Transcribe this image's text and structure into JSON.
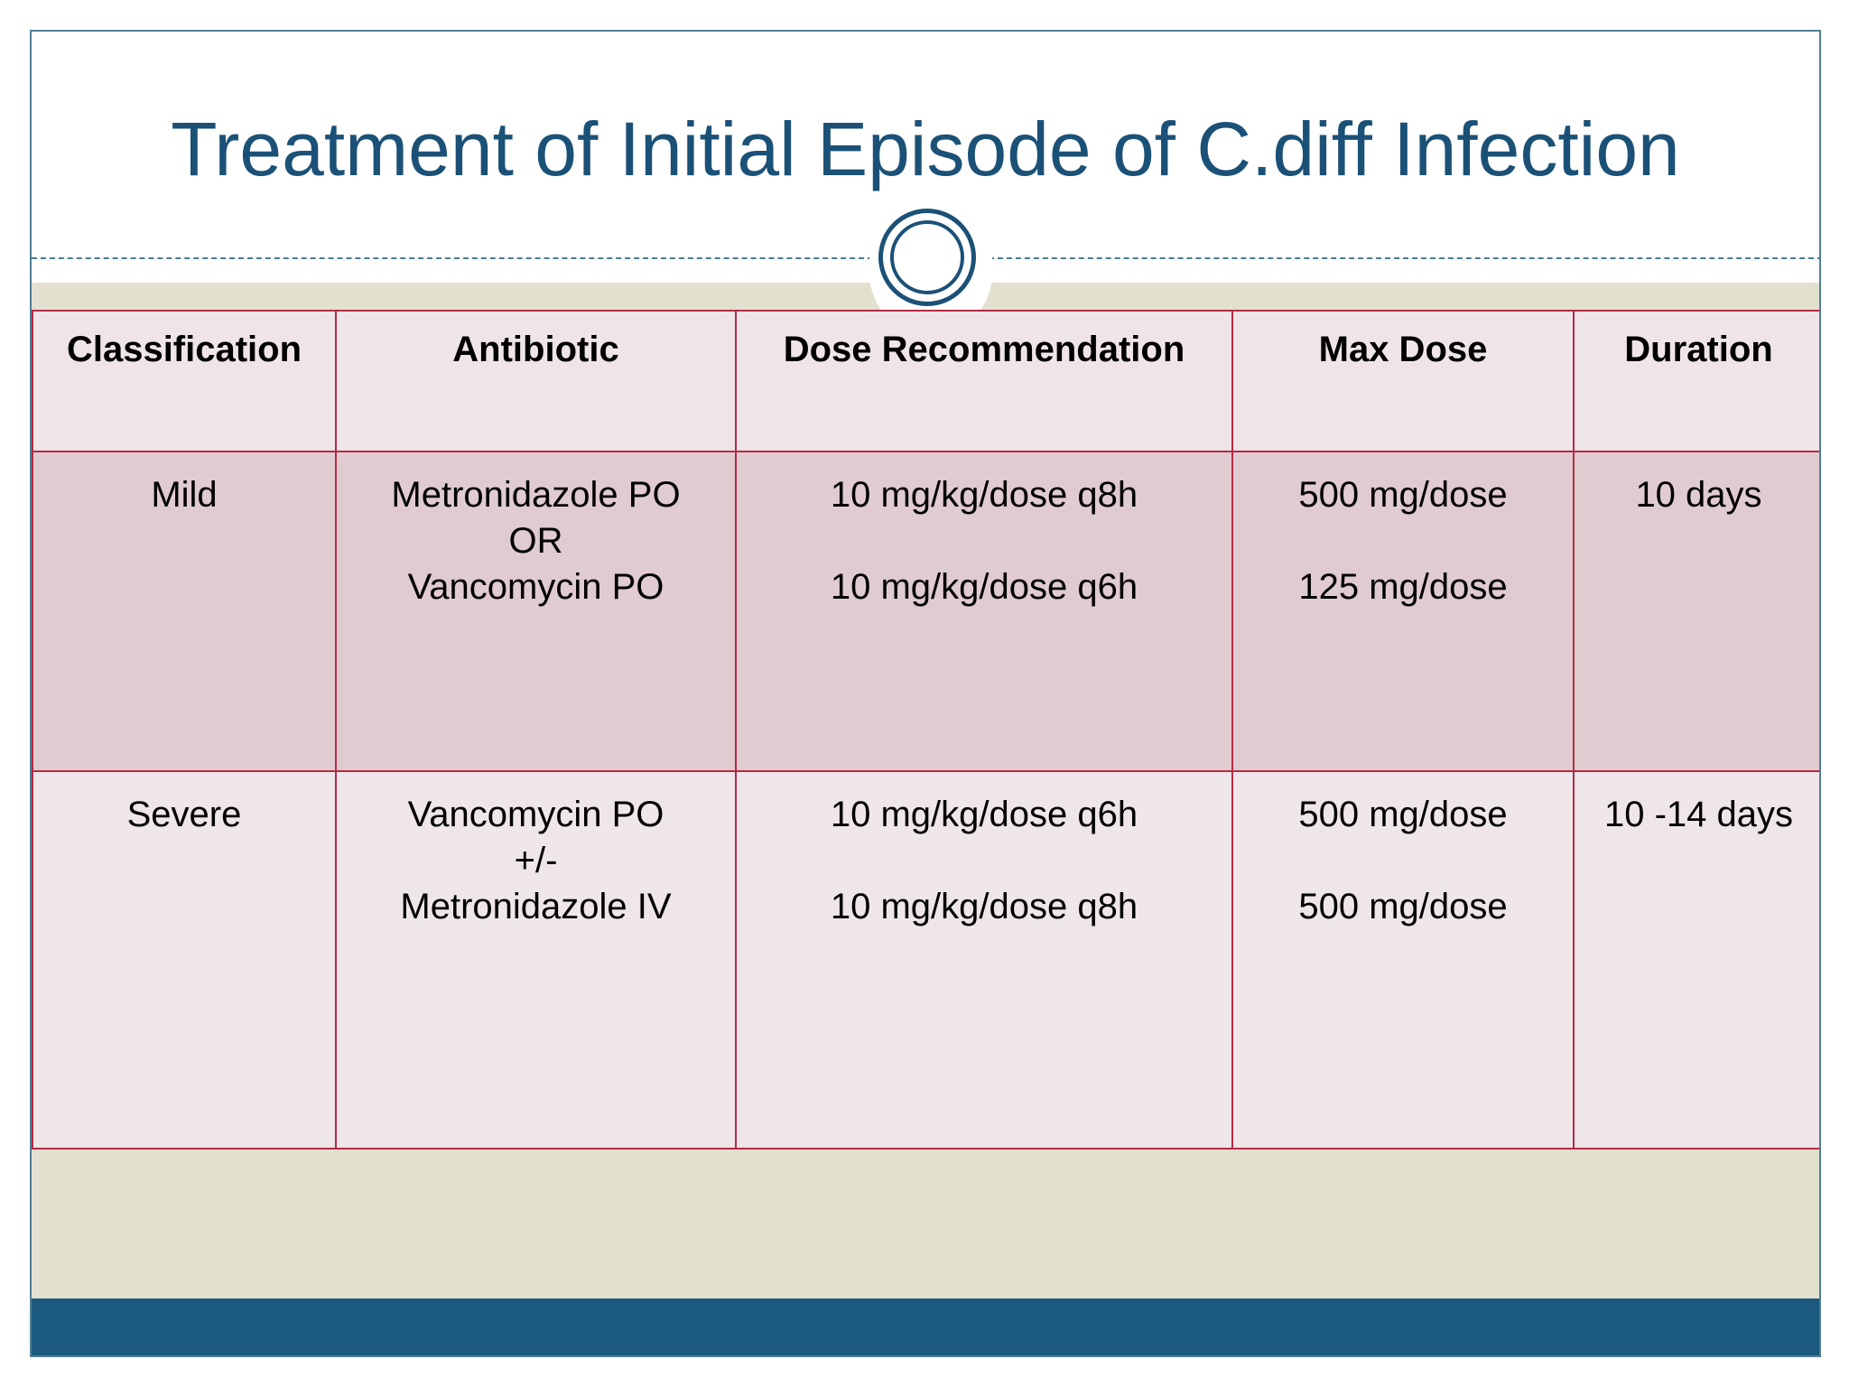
{
  "title": "Treatment of Initial Episode of C.diff Infection",
  "table": {
    "headers": {
      "classification": "Classification",
      "antibiotic": "Antibiotic",
      "dose": "Dose Recommendation",
      "max_dose": "Max Dose",
      "duration": "Duration"
    },
    "rows": [
      {
        "classification": "Mild",
        "antibiotic": [
          "Metronidazole PO",
          "OR",
          "Vancomycin PO"
        ],
        "dose": [
          "10 mg/kg/dose q8h",
          "10 mg/kg/dose q6h"
        ],
        "max_dose": [
          "500 mg/dose",
          "125 mg/dose"
        ],
        "duration": "10 days"
      },
      {
        "classification": "Severe",
        "antibiotic": [
          "Vancomycin PO",
          "+/-",
          "Metronidazole IV"
        ],
        "dose": [
          "10 mg/kg/dose q6h",
          "10 mg/kg/dose q8h"
        ],
        "max_dose": [
          "500 mg/dose",
          "500 mg/dose"
        ],
        "duration": "10 -14 days"
      }
    ]
  },
  "colors": {
    "title": "#1b5177",
    "table_border": "#b32b45",
    "beige_band": "#e3e0d0",
    "footer_bar": "#1b5a7e"
  }
}
